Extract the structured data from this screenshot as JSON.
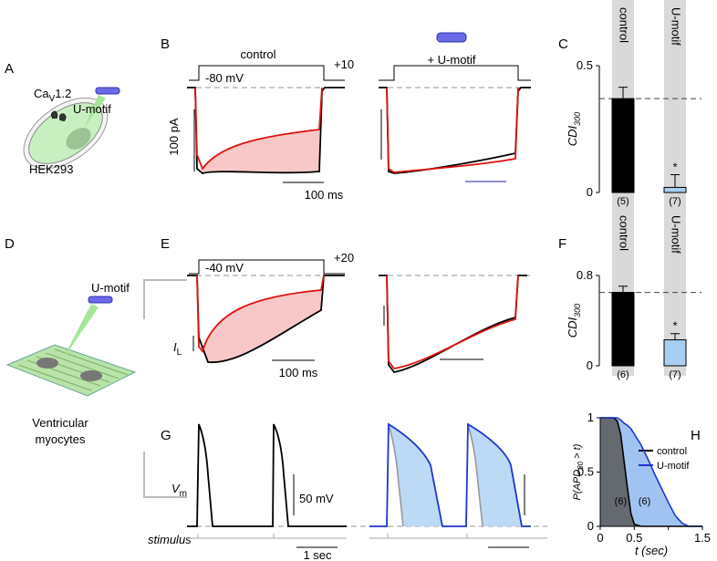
{
  "panel_labels": [
    "A",
    "B",
    "C",
    "D",
    "E",
    "F",
    "G",
    "H"
  ],
  "panel_a": {
    "channel": {
      "base": "Ca",
      "sub": "V",
      "tail": "1.2"
    },
    "peptide": "U-motif",
    "cell": "HEK293"
  },
  "panel_b": {
    "condition": "control",
    "treatment": "+ U-motif",
    "holding": "-80 mV",
    "step": "+10",
    "current_scale": "100 pA",
    "time_scale": "100 ms"
  },
  "panel_d": {
    "peptide": "U-motif",
    "cell": [
      "Ventricular",
      "myocytes"
    ]
  },
  "panel_e": {
    "holding": "-40 mV",
    "step": "+20",
    "current": {
      "base": "I",
      "sub": "L"
    },
    "time_scale": "100 ms"
  },
  "panel_g": {
    "voltage": {
      "base": "V",
      "sub": "m"
    },
    "voltage_scale": "50 mV",
    "stimulus": "stimulus",
    "time_scale": "1 sec"
  },
  "chart_data": [
    {
      "type": "bar",
      "ylabel": {
        "base": "CDI",
        "sub": "300"
      },
      "categories": [
        "control",
        "U-motif"
      ],
      "values": [
        0.37,
        0.02
      ],
      "errors": [
        0.045,
        0.05
      ],
      "colors": [
        "#000000",
        "#a8cff2"
      ],
      "ylim": [
        0,
        0.5
      ],
      "yticks": [
        0,
        0.5
      ],
      "reference_line": 0.37,
      "n_labels": [
        "(5)",
        "(7)"
      ],
      "annotations": [
        {
          "index": 1,
          "text": "*"
        }
      ]
    },
    {
      "type": "bar",
      "ylabel": {
        "base": "CDI",
        "sub": "300"
      },
      "categories": [
        "control",
        "U-motif"
      ],
      "values": [
        0.65,
        0.23
      ],
      "errors": [
        0.055,
        0.055
      ],
      "colors": [
        "#000000",
        "#a8cff2"
      ],
      "ylim": [
        0,
        0.8
      ],
      "yticks": [
        0,
        0.8
      ],
      "reference_line": 0.65,
      "n_labels": [
        "(6)",
        "(7)"
      ],
      "annotations": [
        {
          "index": 1,
          "text": "*"
        }
      ]
    },
    {
      "type": "line",
      "ylabel": {
        "pre": "P(APD",
        "sub": "80",
        "post": " > t)"
      },
      "xlabel": "t (sec)",
      "xlim": [
        0,
        1.5
      ],
      "ylim": [
        0,
        1
      ],
      "xticks": [
        0,
        0.5,
        {
          "value": 1,
          "label": null
        },
        1.5
      ],
      "yticks": [
        0,
        0.5,
        1
      ],
      "x": [
        0,
        0.1,
        0.2,
        0.25,
        0.3,
        0.35,
        0.4,
        0.45,
        0.5,
        0.6,
        0.7,
        0.8,
        0.9,
        1.0,
        1.1,
        1.2,
        1.3,
        1.5
      ],
      "series": [
        {
          "name": "control",
          "color": "#000000",
          "fill": "#5a5a5a",
          "values": [
            1,
            1,
            1,
            0.97,
            0.85,
            0.6,
            0.35,
            0.12,
            0.02,
            0,
            0,
            0,
            0,
            0,
            0,
            0,
            0,
            0
          ]
        },
        {
          "name": "U-motif",
          "color": "#1f35d0",
          "fill": "#8fb8ee",
          "values": [
            1,
            1,
            1,
            1,
            0.98,
            0.95,
            0.93,
            0.9,
            0.85,
            0.75,
            0.62,
            0.48,
            0.35,
            0.22,
            0.1,
            0.03,
            0,
            0
          ]
        }
      ],
      "n_labels": [
        "(6)",
        "(6)"
      ]
    }
  ]
}
